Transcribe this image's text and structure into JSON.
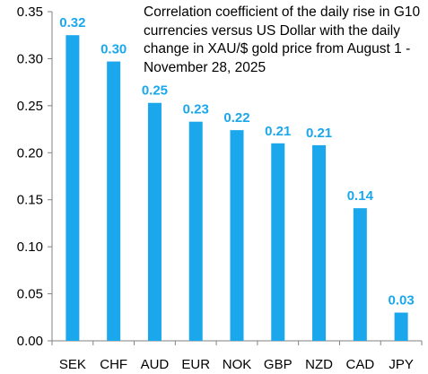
{
  "chart_data": {
    "type": "bar",
    "title": "Correlation coefficient of the daily rise in G10 currencies versus US Dollar with the daily change in XAU/$ gold price from August 1 - November 28, 2025",
    "categories": [
      "SEK",
      "CHF",
      "AUD",
      "EUR",
      "NOK",
      "GBP",
      "NZD",
      "CAD",
      "JPY"
    ],
    "values": [
      0.325,
      0.297,
      0.253,
      0.233,
      0.224,
      0.21,
      0.208,
      0.141,
      0.03
    ],
    "data_labels": [
      "0.32",
      "0.30",
      "0.25",
      "0.23",
      "0.22",
      "0.21",
      "0.21",
      "0.14",
      "0.03"
    ],
    "ylim": [
      0,
      0.35
    ],
    "y_ticks": [
      "0.00",
      "0.05",
      "0.10",
      "0.15",
      "0.20",
      "0.25",
      "0.30",
      "0.35"
    ],
    "xlabel": "",
    "ylabel": "",
    "grid": false,
    "legend": "none",
    "colors": {
      "bar": "#1AA7EC",
      "label": "#1AA7EC",
      "axis": "#808080"
    }
  }
}
